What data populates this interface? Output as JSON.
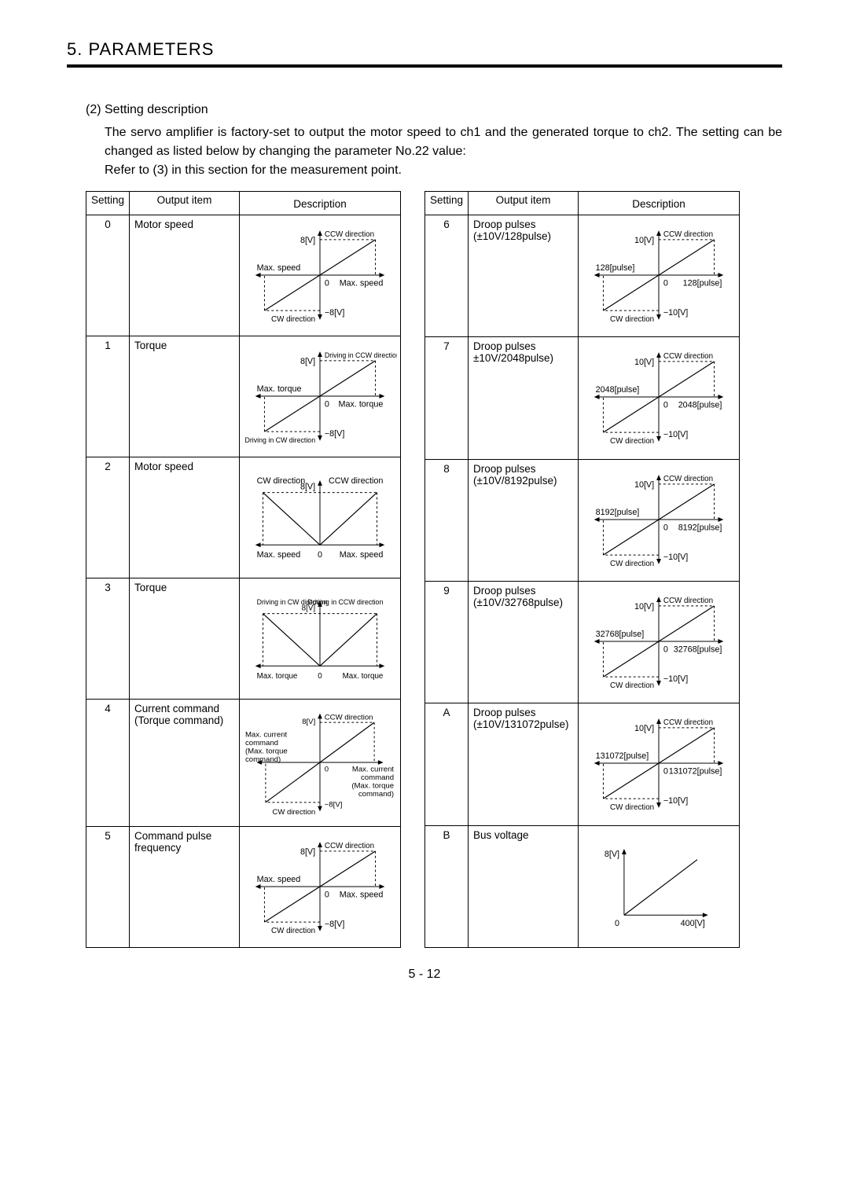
{
  "chapter_title": "5. PARAMETERS",
  "subsection_title": "(2) Setting description",
  "intro_1": "The servo amplifier is factory-set to output the motor speed to ch1 and the generated torque to ch2. The setting can be changed as listed below by changing the parameter No.22 value:",
  "intro_2": "Refer to (3) in this section for the measurement point.",
  "headers": {
    "setting": "Setting",
    "output": "Output item",
    "desc": "Description"
  },
  "left_rows": [
    {
      "setting": "0",
      "output": "Motor speed",
      "diagram": {
        "type": "bipolar_line",
        "pos_y": "8[V]",
        "neg_y": "−8[V]",
        "pos_top": "CCW direction",
        "neg_bottom": "CW direction",
        "left_x": "Max. speed",
        "right_x": "Max. speed",
        "center": "0",
        "font_small": 10,
        "font_labels": 11
      }
    },
    {
      "setting": "1",
      "output": "Torque",
      "diagram": {
        "type": "bipolar_line",
        "pos_y": "8[V]",
        "neg_y": "−8[V]",
        "pos_top": "Driving in CCW direction",
        "neg_bottom": "Driving in CW direction",
        "left_x": "Max. torque",
        "right_x": "Max. torque",
        "center": "0",
        "font_small": 9,
        "font_labels": 11
      }
    },
    {
      "setting": "2",
      "output": "Motor speed",
      "diagram": {
        "type": "vee",
        "top_y": "8[V]",
        "left_top": "CW direction",
        "right_top": "CCW direction",
        "left_x": "Max. speed",
        "right_x": "Max. speed",
        "center": "0",
        "font_labels": 11
      }
    },
    {
      "setting": "3",
      "output": "Torque",
      "diagram": {
        "type": "vee",
        "top_y": "8[V]",
        "left_top": "Driving in CW direction",
        "right_top": "Driving in CCW direction",
        "left_x": "Max. torque",
        "right_x": "Max. torque",
        "center": "0",
        "font_labels": 10,
        "font_small": 9
      }
    },
    {
      "setting": "4",
      "output": "Current command (Torque command)",
      "diagram": {
        "type": "bipolar_line_multi",
        "pos_y": "8[V]",
        "neg_y": "−8[V]",
        "pos_top": "CCW direction",
        "neg_bottom": "CW direction",
        "left_x1": "Max. current",
        "left_x2": "command",
        "left_x3": "(Max. torque",
        "left_x4": "command)",
        "right_x1": "Max. current",
        "right_x2": "command",
        "right_x3": "(Max. torque",
        "right_x4": "command)",
        "center": "0",
        "font_labels": 10
      }
    },
    {
      "setting": "5",
      "output": "Command pulse frequency",
      "diagram": {
        "type": "bipolar_line",
        "pos_y": "8[V]",
        "neg_y": "−8[V]",
        "pos_top": "CCW direction",
        "neg_bottom": "CW direction",
        "left_x": "Max. speed",
        "right_x": "Max. speed",
        "center": "0",
        "font_small": 10,
        "font_labels": 11
      }
    }
  ],
  "right_rows": [
    {
      "setting": "6",
      "output": "Droop pulses (±10V/128pulse)",
      "diagram": {
        "type": "bipolar_line",
        "pos_y": "10[V]",
        "neg_y": "−10[V]",
        "pos_top": "CCW direction",
        "neg_bottom": "CW direction",
        "left_x": "128[pulse]",
        "right_x": "128[pulse]",
        "center": "0",
        "font_small": 10,
        "font_labels": 11
      }
    },
    {
      "setting": "7",
      "output": "Droop pulses ±10V/2048pulse)",
      "diagram": {
        "type": "bipolar_line",
        "pos_y": "10[V]",
        "neg_y": "−10[V]",
        "pos_top": "CCW direction",
        "neg_bottom": "CW direction",
        "left_x": "2048[pulse]",
        "right_x": "2048[pulse]",
        "center": "0",
        "font_small": 10,
        "font_labels": 11
      }
    },
    {
      "setting": "8",
      "output": "Droop pulses (±10V/8192pulse)",
      "diagram": {
        "type": "bipolar_line",
        "pos_y": "10[V]",
        "neg_y": "−10[V]",
        "pos_top": "CCW direction",
        "neg_bottom": "CW direction",
        "left_x": "8192[pulse]",
        "right_x": "8192[pulse]",
        "center": "0",
        "font_small": 10,
        "font_labels": 11
      }
    },
    {
      "setting": "9",
      "output": "Droop pulses (±10V/32768pulse)",
      "diagram": {
        "type": "bipolar_line",
        "pos_y": "10[V]",
        "neg_y": "−10[V]",
        "pos_top": "CCW direction",
        "neg_bottom": "CW direction",
        "left_x": "32768[pulse]",
        "right_x": "32768[pulse]",
        "center": "0",
        "font_small": 10,
        "font_labels": 11
      }
    },
    {
      "setting": "A",
      "output": "Droop pulses (±10V/131072pulse)",
      "diagram": {
        "type": "bipolar_line",
        "pos_y": "10[V]",
        "neg_y": "−10[V]",
        "pos_top": "CCW direction",
        "neg_bottom": "CW direction",
        "left_x": "131072[pulse]",
        "right_x": "131072[pulse]",
        "center": "0",
        "font_small": 10,
        "font_labels": 11
      }
    },
    {
      "setting": "B",
      "output": "Bus voltage",
      "diagram": {
        "type": "first_quadrant",
        "pos_y": "8[V]",
        "right_x": "400[V]",
        "center": "0",
        "font_labels": 11
      }
    }
  ],
  "page_footer": "5 -  12",
  "colors": {
    "line": "#000000",
    "bg": "#ffffff"
  }
}
